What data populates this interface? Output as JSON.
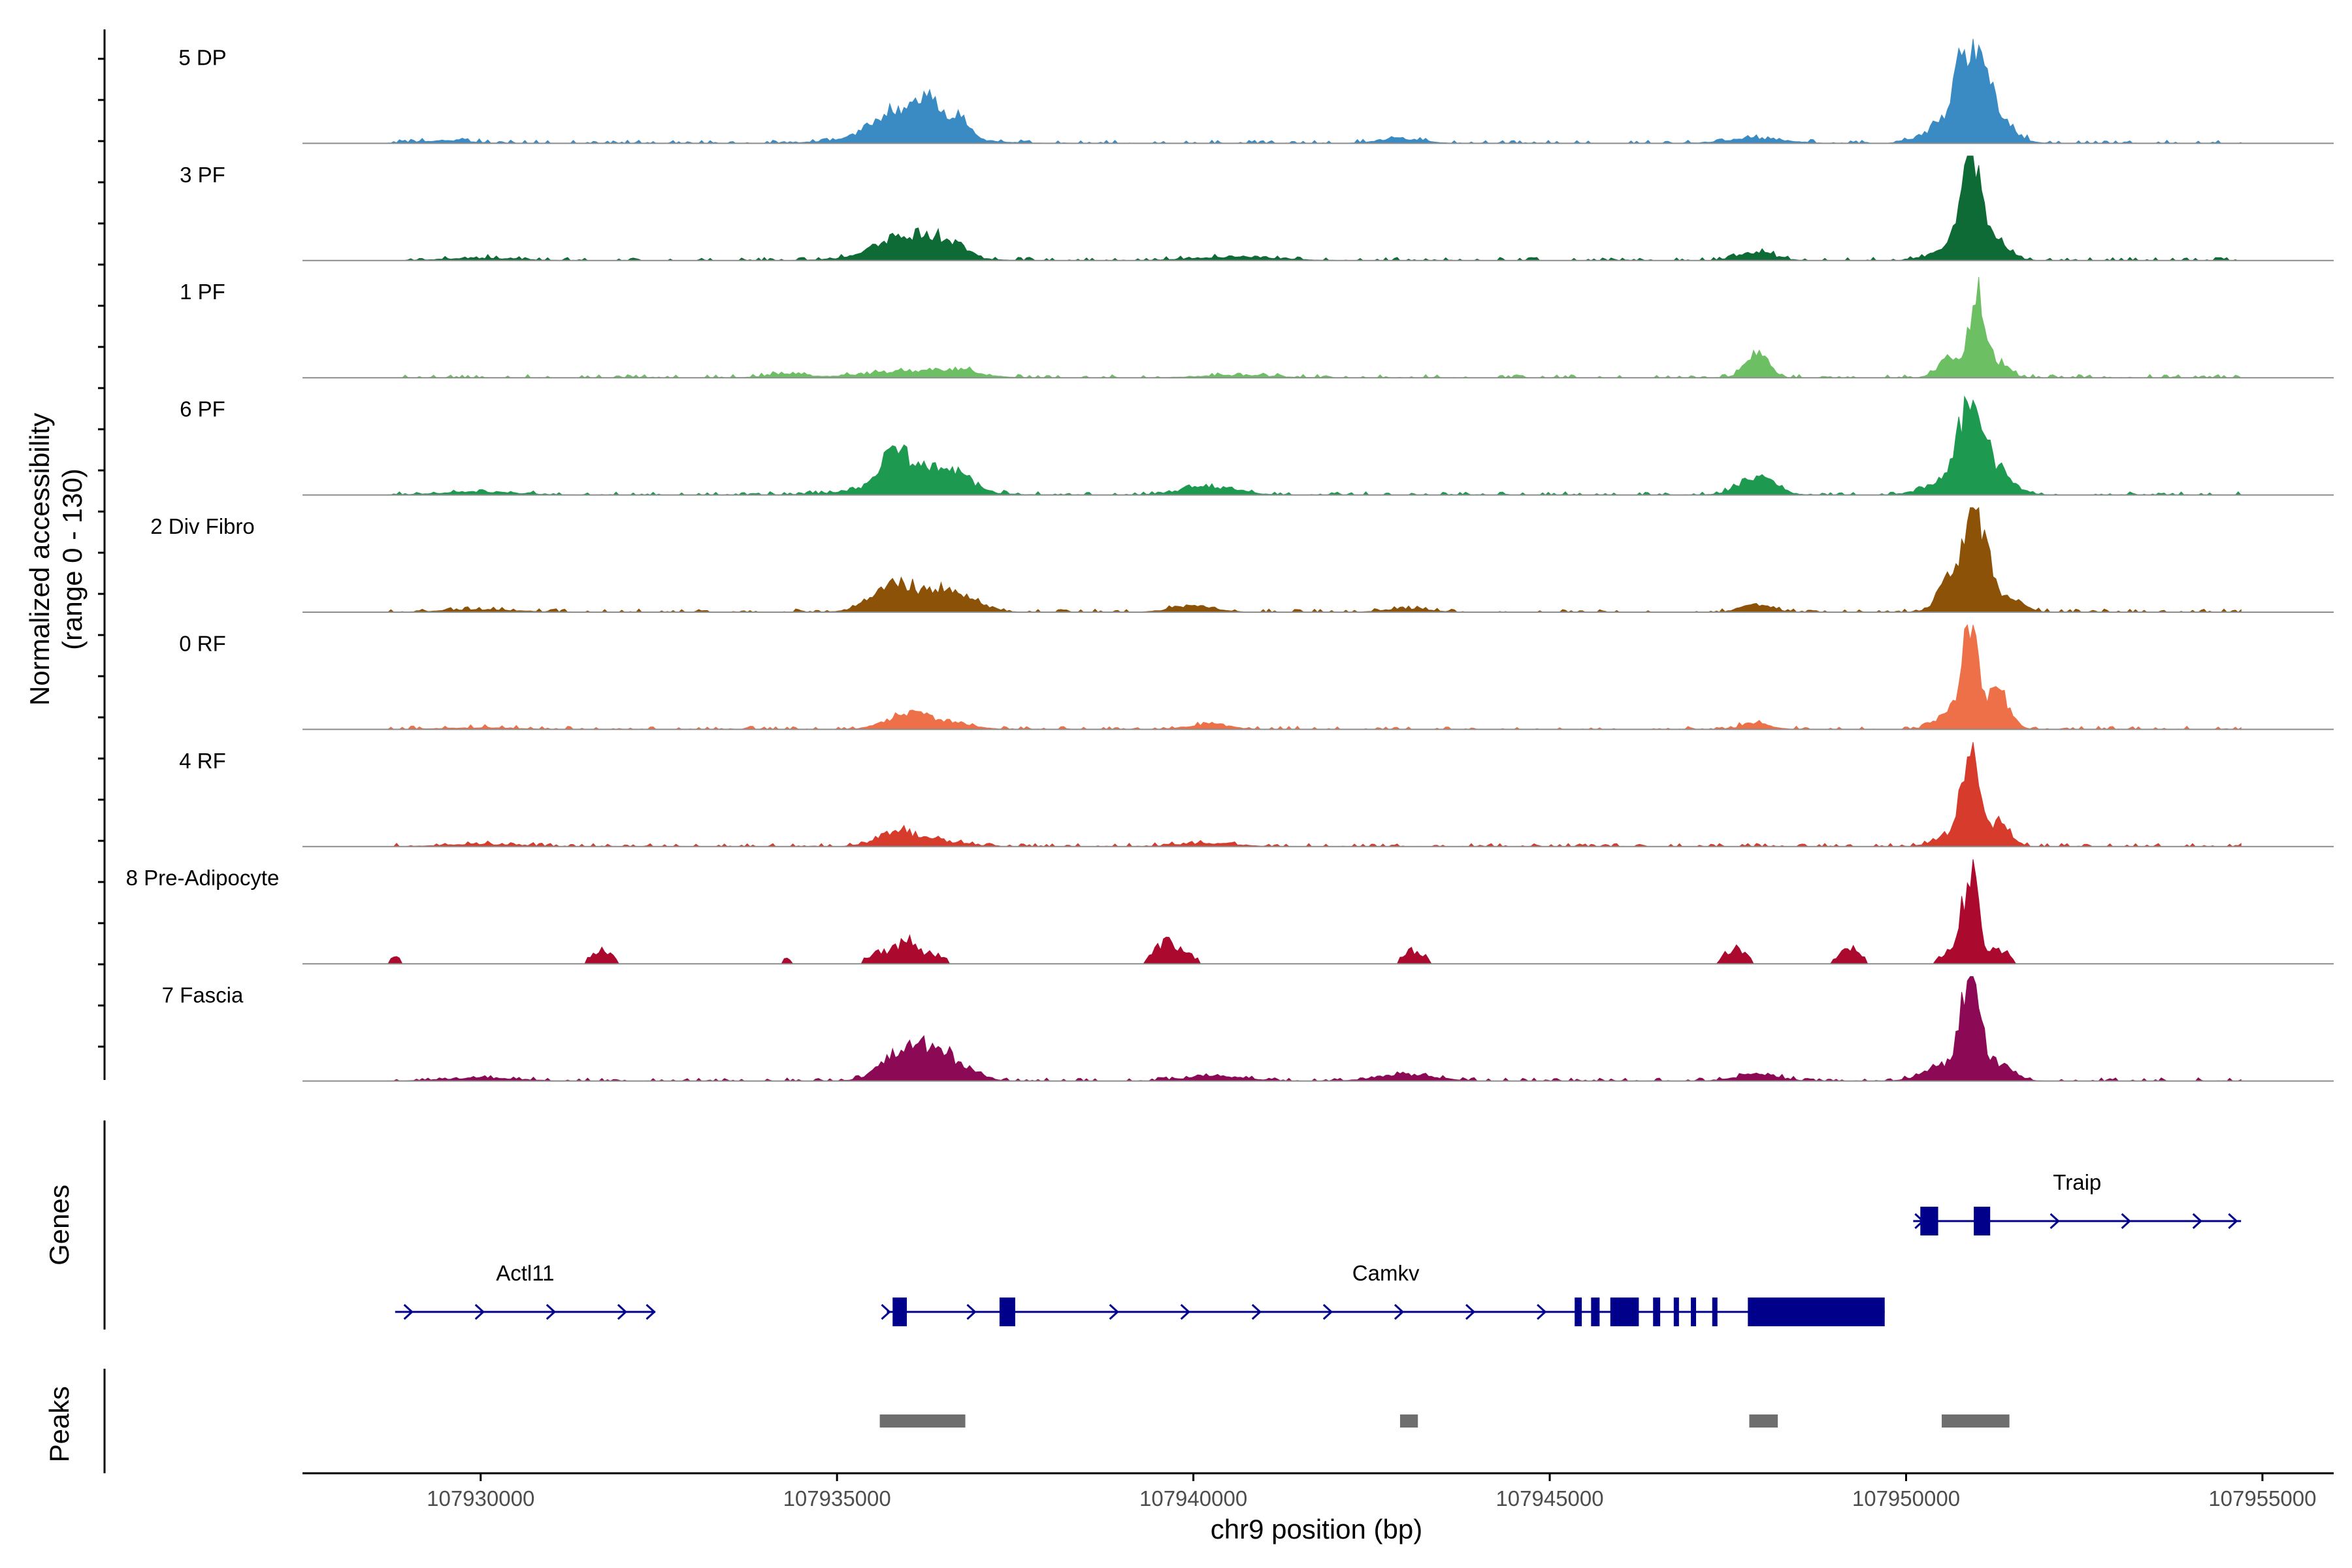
{
  "chart_data": {
    "type": "area",
    "ylabel_line1": "Normalized accessibility",
    "ylabel_line2": "(range 0 - 130)",
    "xlabel": "chr9 position (bp)",
    "xlim": [
      107927500,
      107956000
    ],
    "ylim": [
      0,
      130
    ],
    "x_ticks": [
      107930000,
      107935000,
      107940000,
      107945000,
      107950000,
      107955000
    ],
    "x_tick_labels": [
      "107930000",
      "107935000",
      "107940000",
      "107945000",
      "107950000",
      "107955000"
    ],
    "genes_label": "Genes",
    "peaks_label": "Peaks",
    "tracks": [
      {
        "name": "5 DP",
        "color": "#3a8bc4",
        "peaks": [
          [
            107935800,
            30,
            300
          ],
          [
            107936300,
            34,
            150
          ],
          [
            107936700,
            26,
            140
          ],
          [
            107936000,
            12,
            700
          ],
          [
            107950900,
            95,
            180
          ],
          [
            107951200,
            40,
            250
          ],
          [
            107950600,
            25,
            300
          ],
          [
            107947900,
            6,
            400
          ],
          [
            107942900,
            6,
            300
          ],
          [
            107929500,
            3,
            400
          ]
        ]
      },
      {
        "name": "3 PF",
        "color": "#0e6b35",
        "peaks": [
          [
            107935800,
            18,
            250
          ],
          [
            107936300,
            22,
            200
          ],
          [
            107936700,
            15,
            150
          ],
          [
            107936000,
            10,
            600
          ],
          [
            107950900,
            110,
            130
          ],
          [
            107951200,
            30,
            200
          ],
          [
            107950600,
            15,
            250
          ],
          [
            107947900,
            10,
            250
          ],
          [
            107940600,
            4,
            600
          ],
          [
            107930000,
            3,
            500
          ]
        ]
      },
      {
        "name": "1 PF",
        "color": "#6cbf62",
        "peaks": [
          [
            107936000,
            8,
            600
          ],
          [
            107936700,
            6,
            300
          ],
          [
            107947900,
            32,
            150
          ],
          [
            107951000,
            100,
            110
          ],
          [
            107950600,
            25,
            150
          ],
          [
            107951300,
            18,
            150
          ],
          [
            107940600,
            3,
            500
          ],
          [
            107934300,
            4,
            300
          ]
        ]
      },
      {
        "name": "6 PF",
        "color": "#1e9a50",
        "peaks": [
          [
            107935800,
            38,
            200
          ],
          [
            107936300,
            20,
            300
          ],
          [
            107936700,
            16,
            200
          ],
          [
            107936000,
            10,
            700
          ],
          [
            107947900,
            22,
            250
          ],
          [
            107950900,
            100,
            150
          ],
          [
            107951200,
            35,
            250
          ],
          [
            107950600,
            20,
            300
          ],
          [
            107940200,
            10,
            400
          ],
          [
            107930000,
            4,
            500
          ]
        ]
      },
      {
        "name": "2 Div Fibro",
        "color": "#8b5208",
        "peaks": [
          [
            107936000,
            24,
            400
          ],
          [
            107936700,
            20,
            300
          ],
          [
            107935700,
            14,
            250
          ],
          [
            107951000,
            110,
            140
          ],
          [
            107950700,
            50,
            200
          ],
          [
            107951400,
            20,
            200
          ],
          [
            107947900,
            10,
            200
          ],
          [
            107940000,
            8,
            300
          ],
          [
            107943000,
            4,
            300
          ],
          [
            107930000,
            3,
            500
          ]
        ]
      },
      {
        "name": "0 RF",
        "color": "#ee7048",
        "peaks": [
          [
            107936000,
            18,
            300
          ],
          [
            107936600,
            8,
            300
          ],
          [
            107950900,
            120,
            120
          ],
          [
            107951300,
            45,
            150
          ],
          [
            107950600,
            18,
            200
          ],
          [
            107947900,
            8,
            200
          ],
          [
            107940200,
            6,
            300
          ],
          [
            107930000,
            2,
            500
          ]
        ]
      },
      {
        "name": "4 RF",
        "color": "#d63b2c",
        "peaks": [
          [
            107935800,
            16,
            250
          ],
          [
            107936300,
            8,
            400
          ],
          [
            107950900,
            110,
            120
          ],
          [
            107951300,
            30,
            150
          ],
          [
            107950600,
            15,
            200
          ],
          [
            107940200,
            4,
            400
          ],
          [
            107930000,
            3,
            500
          ]
        ]
      },
      {
        "name": "8 Pre-Adipocyte",
        "color": "#ab0a2e",
        "sparse": true,
        "peaks": [
          [
            107931700,
            20,
            150
          ],
          [
            107935600,
            18,
            150
          ],
          [
            107936000,
            34,
            150
          ],
          [
            107936400,
            12,
            150
          ],
          [
            107939600,
            28,
            150
          ],
          [
            107939900,
            12,
            150
          ],
          [
            107943100,
            18,
            150
          ],
          [
            107947600,
            20,
            150
          ],
          [
            107949200,
            22,
            150
          ],
          [
            107950900,
            120,
            110
          ],
          [
            107951300,
            20,
            150
          ],
          [
            107950600,
            15,
            150
          ],
          [
            107934300,
            8,
            80
          ],
          [
            107928800,
            10,
            80
          ]
        ]
      },
      {
        "name": "7 Fascia",
        "color": "#8c0a55",
        "peaks": [
          [
            107936100,
            34,
            350
          ],
          [
            107936600,
            18,
            300
          ],
          [
            107935800,
            10,
            250
          ],
          [
            107950900,
            130,
            130
          ],
          [
            107951300,
            20,
            200
          ],
          [
            107950500,
            20,
            250
          ],
          [
            107947900,
            8,
            300
          ],
          [
            107943000,
            8,
            400
          ],
          [
            107940300,
            6,
            400
          ],
          [
            107930000,
            4,
            500
          ]
        ]
      }
    ],
    "genes": [
      {
        "name": "Actl11",
        "row": 2,
        "start": 107928800,
        "end": 107932450,
        "chevrons": [
          107929000,
          107930000,
          107931000,
          107932000,
          107932400
        ],
        "exons": []
      },
      {
        "name": "Camkv",
        "row": 2,
        "start": 107935700,
        "end": 107949700,
        "chevrons": [
          107935700,
          107936900,
          107938900,
          107939900,
          107940900,
          107941900,
          107942900,
          107943900,
          107944900
        ],
        "exons": [
          [
            107935780,
            107935980
          ],
          [
            107937280,
            107937500
          ],
          [
            107945350,
            107945450
          ],
          [
            107945580,
            107945700
          ],
          [
            107945850,
            107946250
          ],
          [
            107946450,
            107946550
          ],
          [
            107946740,
            107946800
          ],
          [
            107946980,
            107947050
          ],
          [
            107947280,
            107947350
          ],
          [
            107947780,
            107949700
          ]
        ]
      },
      {
        "name": "Traip",
        "row": 1,
        "start": 107950100,
        "end": 107954700,
        "chevrons": [
          107950200,
          107952100,
          107953100,
          107954100,
          107954600
        ],
        "exons": [
          [
            107950200,
            107950450
          ],
          [
            107950950,
            107951180
          ]
        ]
      }
    ],
    "peaks": [
      [
        107935600,
        107936800
      ],
      [
        107942900,
        107943150
      ],
      [
        107947800,
        107948200
      ],
      [
        107950500,
        107951450
      ]
    ]
  }
}
